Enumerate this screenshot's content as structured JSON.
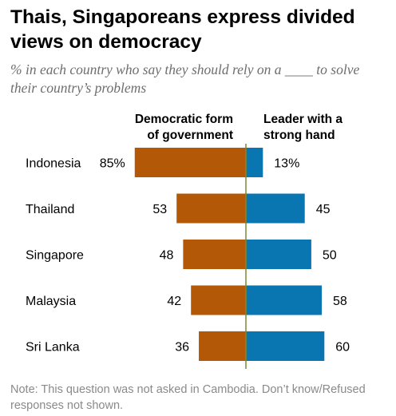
{
  "title": "Thais, Singaporeans express divided views on democracy",
  "subtitle": "% in each country who say they should rely on a ____ to solve their country’s problems",
  "note": "Note: This question was not asked in Cambodia. Don’t know/Refused responses not shown.",
  "colors": {
    "democratic": "#b35806",
    "strong_leader": "#0a76b1",
    "axis": "#7a8a2e"
  },
  "chart_data": {
    "type": "bar",
    "orientation": "diverging-horizontal",
    "categories": [
      "Indonesia",
      "Thailand",
      "Singapore",
      "Malaysia",
      "Sri Lanka"
    ],
    "series": [
      {
        "name": [
          "Democratic form",
          "of government"
        ],
        "values": [
          85,
          53,
          48,
          42,
          36
        ],
        "labels": [
          "85%",
          "53",
          "48",
          "42",
          "36"
        ],
        "side": "left"
      },
      {
        "name": [
          "Leader with a",
          "strong hand"
        ],
        "values": [
          13,
          45,
          50,
          58,
          60
        ],
        "labels": [
          "13%",
          "45",
          "50",
          "58",
          "60"
        ],
        "side": "right"
      }
    ],
    "xlim": [
      0,
      100
    ]
  }
}
